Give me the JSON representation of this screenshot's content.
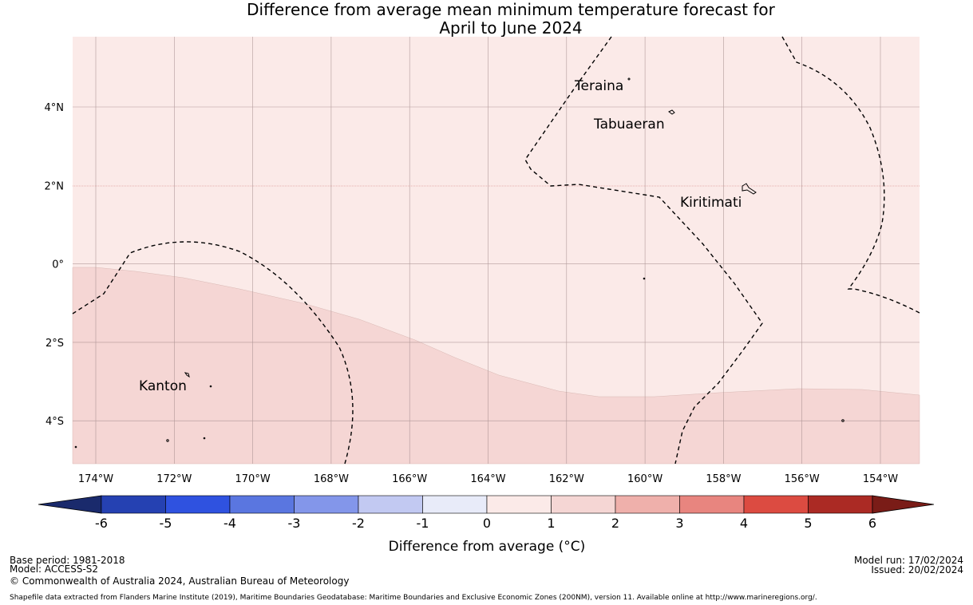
{
  "title_line1": "Difference from average mean minimum temperature forecast for",
  "title_line2": "April to June 2024",
  "map": {
    "background_color": "#fbeae8",
    "warm_region_color": "#f5d6d4",
    "lon_labels": [
      "174°W",
      "172°W",
      "170°W",
      "168°W",
      "166°W",
      "164°W",
      "162°W",
      "160°W",
      "158°W",
      "156°W",
      "154°W"
    ],
    "lat_labels": [
      "4°N",
      "2°N",
      "0°",
      "2°S",
      "4°S"
    ],
    "places": [
      "Teraina",
      "Tabuaeran",
      "Kiritimati",
      "Kanton"
    ]
  },
  "colorbar": {
    "ticks": [
      "-6",
      "-5",
      "-4",
      "-3",
      "-2",
      "-1",
      "0",
      "1",
      "2",
      "3",
      "4",
      "5",
      "6"
    ],
    "colors": [
      "#2541b2",
      "#2f52e0",
      "#5a76e0",
      "#8396ea",
      "#c2c9f2",
      "#e8ebf9",
      "#fbeae8",
      "#f5d6d4",
      "#efb0ab",
      "#e8857f",
      "#dc4b41",
      "#ab2a24"
    ],
    "under_color": "#1a2a6c",
    "over_color": "#7a1c17",
    "label": "Difference from average (°C)"
  },
  "footer": {
    "base_period": "Base period: 1981-2018",
    "model": "Model: ACCESS-S2",
    "copyright": "© Commonwealth of Australia 2024, Australian Bureau of Meteorology",
    "shapefile": "Shapefile data extracted from Flanders Marine Institute (2019), Maritime Boundaries Geodatabase: Maritime Boundaries and Exclusive Economic Zones (200NM), version 11. Available online at http://www.marineregions.org/.",
    "model_run": "Model run: 17/02/2024",
    "issued": "Issued: 20/02/2024"
  }
}
